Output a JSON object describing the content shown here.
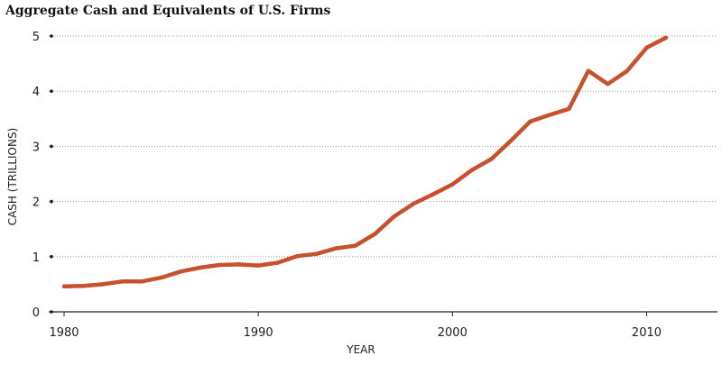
{
  "chart_data": {
    "type": "line",
    "title": "Aggregate Cash and Equivalents of U.S. Firms",
    "xlabel": "YEAR",
    "ylabel": "CASH (TRILLIONS)",
    "xlim": [
      1980,
      2011
    ],
    "ylim": [
      0,
      5
    ],
    "x_ticks": [
      1980,
      1990,
      2000,
      2010
    ],
    "y_ticks": [
      0,
      1,
      2,
      3,
      4,
      5
    ],
    "grid": "horizontal-dotted",
    "legend": "none",
    "series": [
      {
        "color": "#c8502d",
        "x": [
          1980,
          1981,
          1982,
          1983,
          1984,
          1985,
          1986,
          1987,
          1988,
          1989,
          1990,
          1991,
          1992,
          1993,
          1994,
          1995,
          1996,
          1997,
          1998,
          1999,
          2000,
          2001,
          2002,
          2003,
          2004,
          2005,
          2006,
          2007,
          2008,
          2009,
          2010,
          2011
        ],
        "y": [
          0.46,
          0.47,
          0.5,
          0.55,
          0.55,
          0.62,
          0.73,
          0.8,
          0.85,
          0.86,
          0.84,
          0.89,
          1.01,
          1.05,
          1.15,
          1.2,
          1.41,
          1.73,
          1.96,
          2.13,
          2.31,
          2.57,
          2.77,
          3.1,
          3.45,
          3.57,
          3.68,
          4.37,
          4.13,
          4.37,
          4.79,
          4.97
        ]
      }
    ]
  }
}
